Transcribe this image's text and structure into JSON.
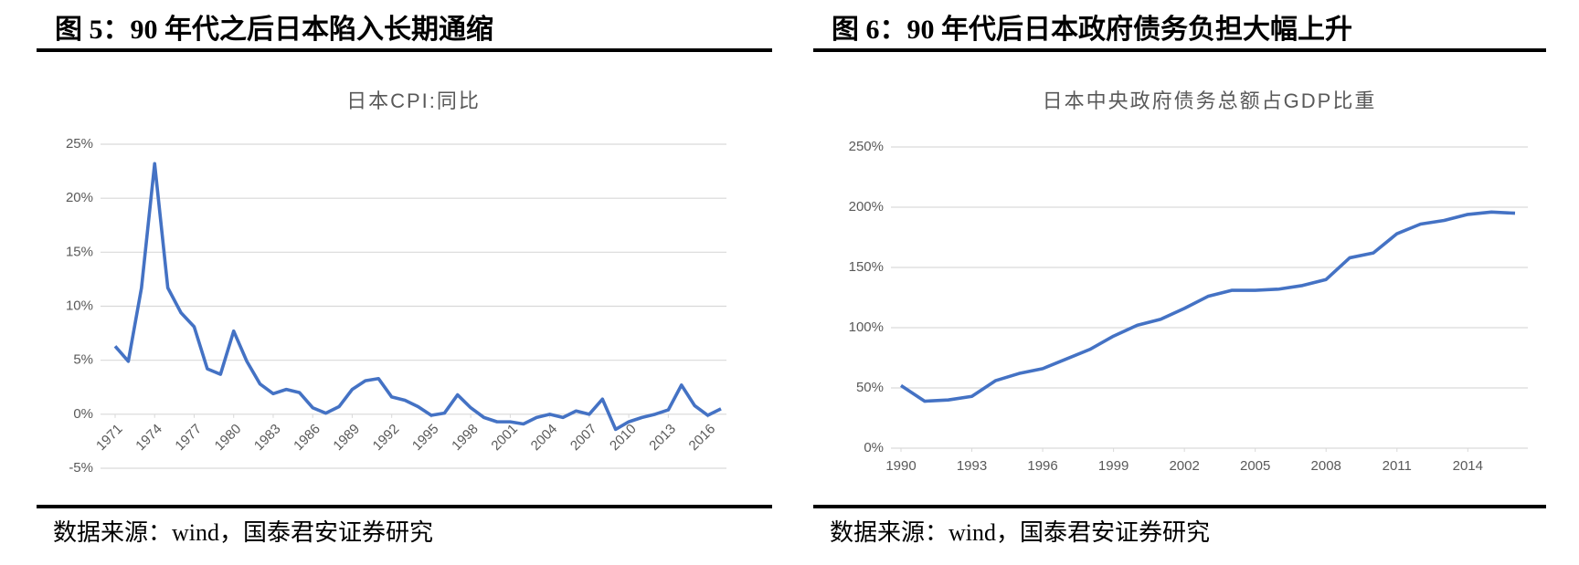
{
  "chart_data": [
    {
      "type": "line",
      "figure_title": "图 5：90 年代之后日本陷入长期通缩",
      "title": "日本CPI:同比",
      "source": "数据来源：wind，国泰君安证券研究",
      "x": [
        1971,
        1972,
        1973,
        1974,
        1975,
        1976,
        1977,
        1978,
        1979,
        1980,
        1981,
        1982,
        1983,
        1984,
        1985,
        1986,
        1987,
        1988,
        1989,
        1990,
        1991,
        1992,
        1993,
        1994,
        1995,
        1996,
        1997,
        1998,
        1999,
        2000,
        2001,
        2002,
        2003,
        2004,
        2005,
        2006,
        2007,
        2008,
        2009,
        2010,
        2011,
        2012,
        2013,
        2014,
        2015,
        2016,
        2017
      ],
      "series": [
        {
          "color": "#4472c4",
          "values": [
            6.3,
            4.9,
            11.7,
            23.2,
            11.7,
            9.4,
            8.1,
            4.2,
            3.7,
            7.7,
            4.9,
            2.8,
            1.9,
            2.3,
            2.0,
            0.6,
            0.1,
            0.7,
            2.3,
            3.1,
            3.3,
            1.6,
            1.3,
            0.7,
            -0.1,
            0.1,
            1.8,
            0.6,
            -0.3,
            -0.7,
            -0.7,
            -0.9,
            -0.3,
            0.0,
            -0.3,
            0.3,
            0.0,
            1.4,
            -1.4,
            -0.7,
            -0.3,
            0.0,
            0.4,
            2.7,
            0.8,
            -0.1,
            0.5
          ]
        }
      ],
      "xlim": [
        1971,
        2017
      ],
      "xticks": [
        1971,
        1974,
        1977,
        1980,
        1983,
        1986,
        1989,
        1992,
        1995,
        1998,
        2001,
        2004,
        2007,
        2010,
        2013,
        2016
      ],
      "xtick_rotation": -45,
      "ylim": [
        -5,
        25
      ],
      "yticks": [
        {
          "value": -5,
          "label": "-5%"
        },
        {
          "value": 0,
          "label": "0%"
        },
        {
          "value": 5,
          "label": "5%"
        },
        {
          "value": 10,
          "label": "10%"
        },
        {
          "value": 15,
          "label": "15%"
        },
        {
          "value": 20,
          "label": "20%"
        },
        {
          "value": 25,
          "label": "25%"
        }
      ],
      "grid": true
    },
    {
      "type": "line",
      "figure_title": "图 6：90 年代后日本政府债务负担大幅上升",
      "title": "日本中央政府债务总额占GDP比重",
      "source": "数据来源：wind，国泰君安证券研究",
      "x": [
        1990,
        1991,
        1992,
        1993,
        1994,
        1995,
        1996,
        1997,
        1998,
        1999,
        2000,
        2001,
        2002,
        2003,
        2004,
        2005,
        2006,
        2007,
        2008,
        2009,
        2010,
        2011,
        2012,
        2013,
        2014,
        2015,
        2016
      ],
      "series": [
        {
          "color": "#4472c4",
          "values": [
            52,
            39,
            40,
            43,
            56,
            62,
            66,
            74,
            82,
            93,
            102,
            107,
            116,
            126,
            131,
            131,
            132,
            135,
            140,
            158,
            162,
            178,
            186,
            189,
            194,
            196,
            195
          ]
        }
      ],
      "xlim": [
        1990,
        2016
      ],
      "xticks": [
        1990,
        1993,
        1996,
        1999,
        2002,
        2005,
        2008,
        2011,
        2014
      ],
      "xtick_rotation": 0,
      "ylim": [
        0,
        250
      ],
      "yticks": [
        {
          "value": 0,
          "label": "0%"
        },
        {
          "value": 50,
          "label": "50%"
        },
        {
          "value": 100,
          "label": "100%"
        },
        {
          "value": 150,
          "label": "150%"
        },
        {
          "value": 200,
          "label": "200%"
        },
        {
          "value": 250,
          "label": "250%"
        }
      ],
      "grid": true
    }
  ]
}
